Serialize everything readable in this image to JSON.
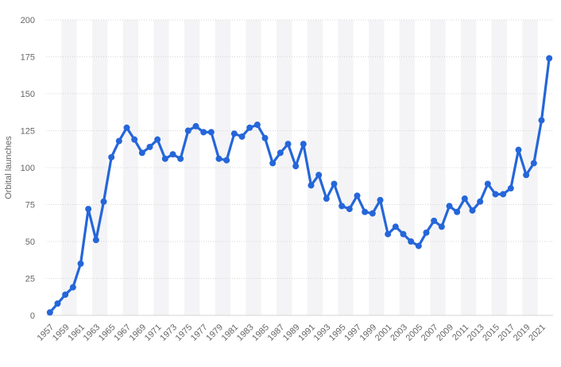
{
  "chart_data": {
    "type": "line",
    "title": "",
    "xlabel": "",
    "ylabel": "Orbital launches",
    "ylim": [
      0,
      200
    ],
    "yticks": [
      0,
      25,
      50,
      75,
      100,
      125,
      150,
      175,
      200
    ],
    "grid": true,
    "legend": "none",
    "x": [
      1957,
      1958,
      1959,
      1960,
      1961,
      1962,
      1963,
      1964,
      1965,
      1966,
      1967,
      1968,
      1969,
      1970,
      1971,
      1972,
      1973,
      1974,
      1975,
      1976,
      1977,
      1978,
      1979,
      1980,
      1981,
      1982,
      1983,
      1984,
      1985,
      1986,
      1987,
      1988,
      1989,
      1990,
      1991,
      1992,
      1993,
      1994,
      1995,
      1996,
      1997,
      1998,
      1999,
      2000,
      2001,
      2002,
      2003,
      2004,
      2005,
      2006,
      2007,
      2008,
      2009,
      2010,
      2011,
      2012,
      2013,
      2014,
      2015,
      2016,
      2017,
      2018,
      2019,
      2020,
      2021,
      2022
    ],
    "xtick_labels": [
      "1957",
      "1959",
      "1961",
      "1963",
      "1965",
      "1967",
      "1969",
      "1971",
      "1973",
      "1975",
      "1977",
      "1979",
      "1981",
      "1983",
      "1985",
      "1987",
      "1989",
      "1991",
      "1993",
      "1995",
      "1997",
      "1999",
      "2001",
      "2003",
      "2005",
      "2007",
      "2009",
      "2011",
      "2013",
      "2015",
      "2017",
      "2019",
      "2021"
    ],
    "series": [
      {
        "name": "",
        "values": [
          2,
          8,
          14,
          19,
          35,
          72,
          51,
          77,
          107,
          118,
          127,
          119,
          110,
          114,
          119,
          106,
          109,
          106,
          125,
          128,
          124,
          124,
          106,
          105,
          123,
          121,
          127,
          129,
          120,
          103,
          110,
          116,
          101,
          116,
          88,
          95,
          79,
          89,
          74,
          72,
          81,
          70,
          69,
          78,
          55,
          60,
          55,
          50,
          47,
          56,
          64,
          60,
          74,
          70,
          79,
          71,
          77,
          89,
          82,
          82,
          86,
          112,
          95,
          103,
          132,
          174
        ],
        "color": "#2566d9"
      }
    ],
    "colors": {
      "line": "#2566d9",
      "band": "#f4f4f6",
      "grid": "#d5d5d5",
      "text": "#666666"
    }
  }
}
